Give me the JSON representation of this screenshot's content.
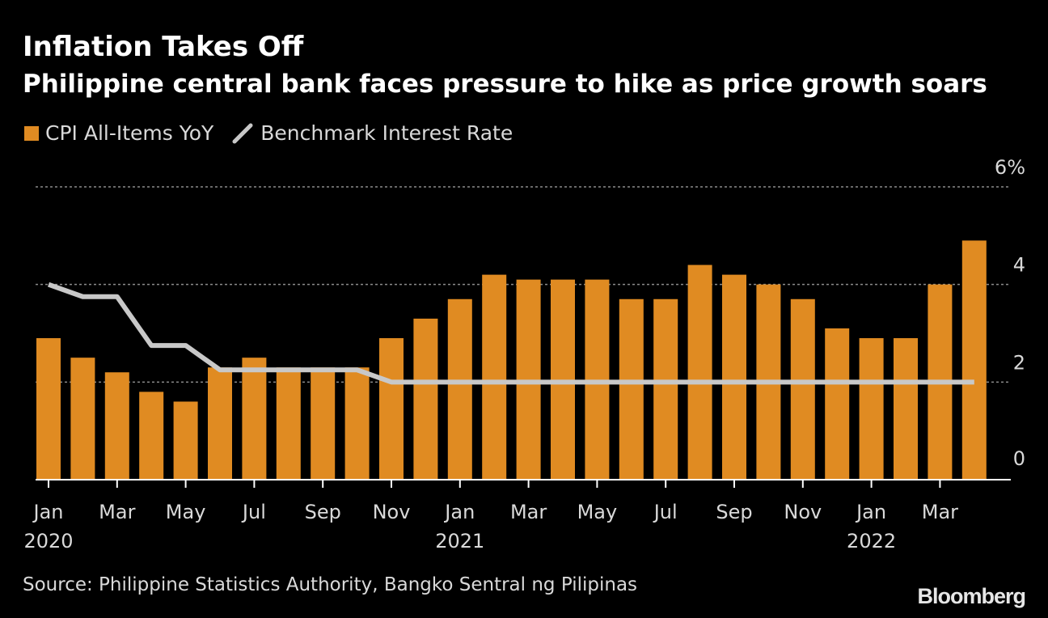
{
  "title": "Inflation Takes Off",
  "subtitle": "Philippine central bank faces pressure to hike as price growth soars",
  "legend": {
    "cpi_label": "CPI All-Items YoY",
    "rate_label": "Benchmark Interest Rate"
  },
  "source": "Source: Philippine Statistics Authority, Bangko Sentral ng Pilipinas",
  "brand": "Bloomberg",
  "colors": {
    "background": "#000000",
    "cpi_bar": "#E08B22",
    "rate_line": "#C8C8C8",
    "grid": "#8c8c8c",
    "axis": "#ffffff",
    "text": "#d9d9d9"
  },
  "chart_data": {
    "type": "bar",
    "months": [
      "Jan 2020",
      "Feb 2020",
      "Mar 2020",
      "Apr 2020",
      "May 2020",
      "Jun 2020",
      "Jul 2020",
      "Aug 2020",
      "Sep 2020",
      "Oct 2020",
      "Nov 2020",
      "Dec 2020",
      "Jan 2021",
      "Feb 2021",
      "Mar 2021",
      "Apr 2021",
      "May 2021",
      "Jun 2021",
      "Jul 2021",
      "Aug 2021",
      "Sep 2021",
      "Oct 2021",
      "Nov 2021",
      "Dec 2021",
      "Jan 2022",
      "Feb 2022",
      "Mar 2022",
      "Apr 2022"
    ],
    "x_tick_labels": [
      {
        "index": 0,
        "label": "Jan",
        "year": "2020"
      },
      {
        "index": 2,
        "label": "Mar",
        "year": ""
      },
      {
        "index": 4,
        "label": "May",
        "year": ""
      },
      {
        "index": 6,
        "label": "Jul",
        "year": ""
      },
      {
        "index": 8,
        "label": "Sep",
        "year": ""
      },
      {
        "index": 10,
        "label": "Nov",
        "year": ""
      },
      {
        "index": 12,
        "label": "Jan",
        "year": "2021"
      },
      {
        "index": 14,
        "label": "Mar",
        "year": ""
      },
      {
        "index": 16,
        "label": "May",
        "year": ""
      },
      {
        "index": 18,
        "label": "Jul",
        "year": ""
      },
      {
        "index": 20,
        "label": "Sep",
        "year": ""
      },
      {
        "index": 22,
        "label": "Nov",
        "year": ""
      },
      {
        "index": 24,
        "label": "Jan",
        "year": "2022"
      },
      {
        "index": 26,
        "label": "Mar",
        "year": ""
      }
    ],
    "series": [
      {
        "name": "CPI All-Items YoY",
        "type": "bar",
        "values": [
          2.9,
          2.5,
          2.2,
          1.8,
          1.6,
          2.3,
          2.5,
          2.3,
          2.3,
          2.3,
          2.9,
          3.3,
          3.7,
          4.2,
          4.1,
          4.1,
          4.1,
          3.7,
          3.7,
          4.4,
          4.2,
          4.0,
          3.7,
          3.1,
          2.9,
          2.9,
          4.0,
          4.9
        ]
      },
      {
        "name": "Benchmark Interest Rate",
        "type": "line",
        "values": [
          4.0,
          3.75,
          3.75,
          2.75,
          2.75,
          2.25,
          2.25,
          2.25,
          2.25,
          2.25,
          2.0,
          2.0,
          2.0,
          2.0,
          2.0,
          2.0,
          2.0,
          2.0,
          2.0,
          2.0,
          2.0,
          2.0,
          2.0,
          2.0,
          2.0,
          2.0,
          2.0,
          2.0
        ]
      }
    ],
    "y_ticks": [
      {
        "value": 0,
        "label": "0"
      },
      {
        "value": 2,
        "label": "2"
      },
      {
        "value": 4,
        "label": "4"
      },
      {
        "value": 6,
        "label": "6%"
      }
    ],
    "ylim": [
      0,
      6
    ],
    "grid": true,
    "legend_position": "top-left"
  }
}
